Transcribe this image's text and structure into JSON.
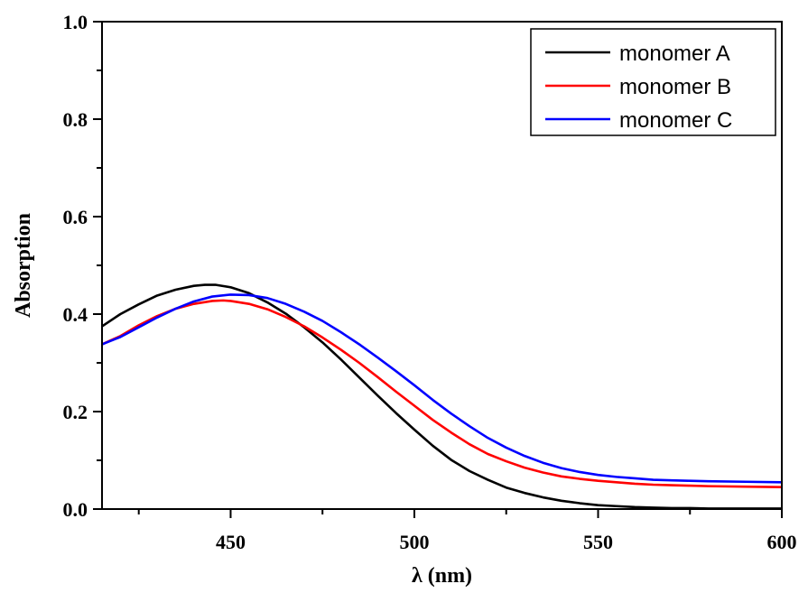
{
  "chart_data": {
    "type": "line",
    "xlabel": "λ (nm)",
    "ylabel": "Absorption",
    "xlim": [
      415,
      600
    ],
    "ylim": [
      0,
      1.0
    ],
    "x_ticks": [
      450,
      500,
      550,
      600
    ],
    "x_minor_ticks": [
      425,
      475,
      525,
      575
    ],
    "y_ticks": [
      0.0,
      0.2,
      0.4,
      0.6,
      0.8,
      1.0
    ],
    "y_tick_labels": [
      "0.0",
      "0.2",
      "0.4",
      "0.6",
      "0.8",
      "1.0"
    ],
    "legend": "top-right",
    "grid": false,
    "series": [
      {
        "name": "monomer A",
        "color": "#000000",
        "x": [
          415,
          420,
          425,
          430,
          435,
          440,
          443,
          446,
          450,
          455,
          460,
          465,
          470,
          475,
          480,
          485,
          490,
          495,
          500,
          505,
          510,
          515,
          520,
          525,
          530,
          535,
          540,
          545,
          550,
          555,
          560,
          565,
          570,
          575,
          580,
          590,
          600
        ],
        "y": [
          0.375,
          0.4,
          0.42,
          0.438,
          0.45,
          0.458,
          0.46,
          0.46,
          0.455,
          0.443,
          0.424,
          0.401,
          0.373,
          0.342,
          0.307,
          0.27,
          0.233,
          0.197,
          0.163,
          0.13,
          0.101,
          0.078,
          0.06,
          0.044,
          0.033,
          0.024,
          0.017,
          0.012,
          0.008,
          0.006,
          0.004,
          0.003,
          0.002,
          0.002,
          0.001,
          0.001,
          0.001
        ]
      },
      {
        "name": "monomer B",
        "color": "#ff0000",
        "x": [
          415,
          420,
          425,
          430,
          435,
          440,
          445,
          448,
          450,
          455,
          460,
          465,
          470,
          475,
          480,
          485,
          490,
          495,
          500,
          505,
          510,
          515,
          520,
          525,
          530,
          535,
          540,
          545,
          550,
          555,
          560,
          565,
          570,
          575,
          580,
          590,
          600
        ],
        "y": [
          0.338,
          0.355,
          0.377,
          0.396,
          0.411,
          0.421,
          0.427,
          0.428,
          0.427,
          0.421,
          0.41,
          0.394,
          0.375,
          0.352,
          0.327,
          0.3,
          0.271,
          0.241,
          0.212,
          0.183,
          0.157,
          0.133,
          0.113,
          0.098,
          0.085,
          0.075,
          0.067,
          0.062,
          0.058,
          0.055,
          0.052,
          0.05,
          0.049,
          0.048,
          0.047,
          0.046,
          0.045
        ]
      },
      {
        "name": "monomer C",
        "color": "#0000ff",
        "x": [
          415,
          420,
          425,
          430,
          435,
          440,
          445,
          450,
          455,
          460,
          465,
          470,
          475,
          480,
          485,
          490,
          495,
          500,
          505,
          510,
          515,
          520,
          525,
          530,
          535,
          540,
          545,
          550,
          555,
          560,
          565,
          570,
          575,
          580,
          590,
          600
        ],
        "y": [
          0.338,
          0.353,
          0.373,
          0.393,
          0.411,
          0.426,
          0.436,
          0.44,
          0.439,
          0.433,
          0.421,
          0.405,
          0.386,
          0.363,
          0.338,
          0.311,
          0.283,
          0.254,
          0.224,
          0.196,
          0.17,
          0.146,
          0.126,
          0.109,
          0.095,
          0.084,
          0.076,
          0.07,
          0.066,
          0.063,
          0.06,
          0.059,
          0.058,
          0.057,
          0.056,
          0.055
        ]
      }
    ]
  }
}
